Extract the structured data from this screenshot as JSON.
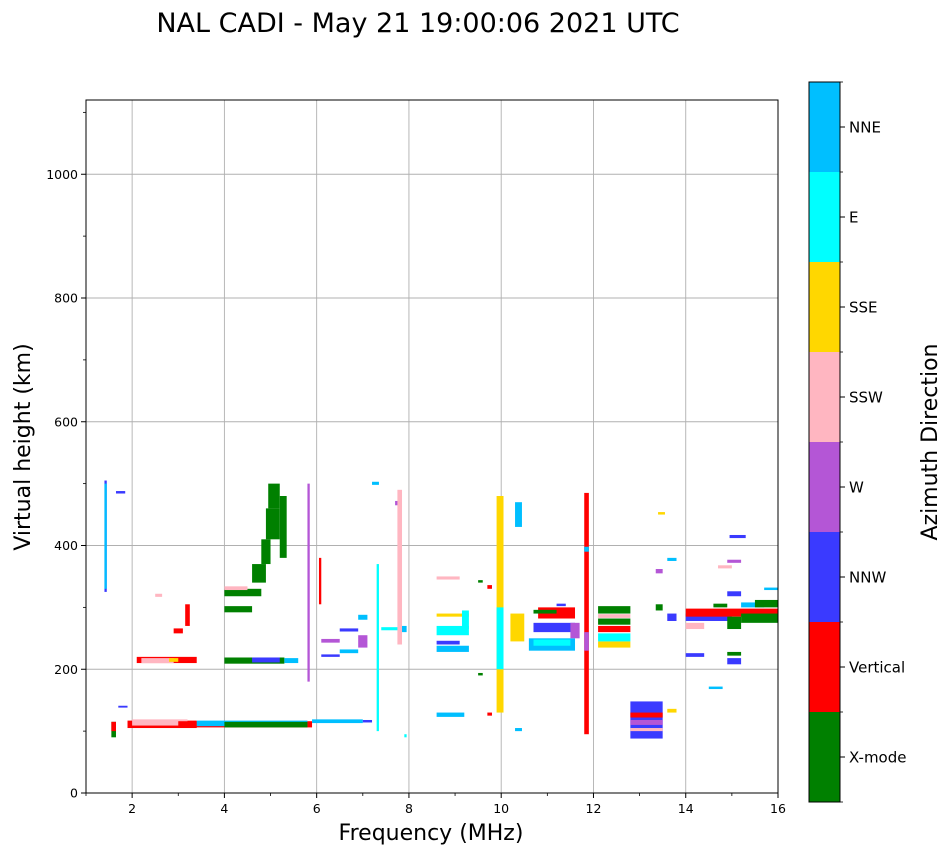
{
  "chart_data": {
    "type": "scatter",
    "title": "NAL CADI - May 21 19:00:06 2021 UTC",
    "xlabel": "Frequency (MHz)",
    "ylabel": "Virtual height (km)",
    "xlim": [
      1,
      16
    ],
    "ylim": [
      0,
      1120
    ],
    "xticks": [
      2,
      4,
      6,
      8,
      10,
      12,
      14,
      16
    ],
    "yticks": [
      0,
      200,
      400,
      600,
      800,
      1000
    ],
    "grid": true,
    "colorbar": {
      "label": "Azimuth Direction",
      "categories": [
        {
          "name": "X-mode",
          "color": "#008000"
        },
        {
          "name": "Vertical",
          "color": "#ff0000"
        },
        {
          "name": "NNW",
          "color": "#3a3aff"
        },
        {
          "name": "W",
          "color": "#b456d6"
        },
        {
          "name": "SSW",
          "color": "#ffb6c1"
        },
        {
          "name": "SSE",
          "color": "#ffd700"
        },
        {
          "name": "E",
          "color": "#00ffff"
        },
        {
          "name": "NNE",
          "color": "#00bfff"
        }
      ]
    },
    "segments": [
      {
        "x0": 1.4,
        "x1": 1.45,
        "y0": 325,
        "y1": 505,
        "c": "NNW"
      },
      {
        "x0": 1.4,
        "x1": 1.45,
        "y0": 330,
        "y1": 500,
        "c": "NNE"
      },
      {
        "x0": 1.65,
        "x1": 1.85,
        "y0": 484,
        "y1": 488,
        "c": "NNW"
      },
      {
        "x0": 1.55,
        "x1": 1.65,
        "y0": 90,
        "y1": 115,
        "c": "X-mode"
      },
      {
        "x0": 1.55,
        "x1": 1.65,
        "y0": 100,
        "y1": 115,
        "c": "Vertical"
      },
      {
        "x0": 1.7,
        "x1": 1.9,
        "y0": 138,
        "y1": 141,
        "c": "NNW"
      },
      {
        "x0": 1.9,
        "x1": 3.4,
        "y0": 105,
        "y1": 117,
        "c": "Vertical"
      },
      {
        "x0": 2.0,
        "x1": 3.2,
        "y0": 109,
        "y1": 119,
        "c": "SSW"
      },
      {
        "x0": 2.1,
        "x1": 3.4,
        "y0": 210,
        "y1": 220,
        "c": "Vertical"
      },
      {
        "x0": 2.2,
        "x1": 2.9,
        "y0": 210,
        "y1": 218,
        "c": "SSW"
      },
      {
        "x0": 2.8,
        "x1": 3.0,
        "y0": 212,
        "y1": 218,
        "c": "SSE"
      },
      {
        "x0": 2.5,
        "x1": 2.65,
        "y0": 317,
        "y1": 322,
        "c": "SSW"
      },
      {
        "x0": 2.9,
        "x1": 3.1,
        "y0": 258,
        "y1": 266,
        "c": "Vertical"
      },
      {
        "x0": 3.15,
        "x1": 3.25,
        "y0": 270,
        "y1": 305,
        "c": "Vertical"
      },
      {
        "x0": 3.0,
        "x1": 5.9,
        "y0": 106,
        "y1": 116,
        "c": "Vertical"
      },
      {
        "x0": 3.4,
        "x1": 5.8,
        "y0": 108,
        "y1": 117,
        "c": "NNE"
      },
      {
        "x0": 4.0,
        "x1": 5.8,
        "y0": 106,
        "y1": 115,
        "c": "X-mode"
      },
      {
        "x0": 4.0,
        "x1": 5.3,
        "y0": 209,
        "y1": 219,
        "c": "X-mode"
      },
      {
        "x0": 4.6,
        "x1": 5.2,
        "y0": 211,
        "y1": 219,
        "c": "NNW"
      },
      {
        "x0": 5.3,
        "x1": 5.6,
        "y0": 210,
        "y1": 218,
        "c": "NNE"
      },
      {
        "x0": 4.0,
        "x1": 4.6,
        "y0": 292,
        "y1": 302,
        "c": "X-mode"
      },
      {
        "x0": 4.0,
        "x1": 4.8,
        "y0": 318,
        "y1": 330,
        "c": "X-mode"
      },
      {
        "x0": 4.0,
        "x1": 4.5,
        "y0": 328,
        "y1": 334,
        "c": "SSW"
      },
      {
        "x0": 4.6,
        "x1": 4.9,
        "y0": 340,
        "y1": 370,
        "c": "X-mode"
      },
      {
        "x0": 4.8,
        "x1": 5.0,
        "y0": 370,
        "y1": 410,
        "c": "X-mode"
      },
      {
        "x0": 4.9,
        "x1": 5.2,
        "y0": 410,
        "y1": 460,
        "c": "X-mode"
      },
      {
        "x0": 4.95,
        "x1": 5.2,
        "y0": 460,
        "y1": 500,
        "c": "X-mode"
      },
      {
        "x0": 5.2,
        "x1": 5.35,
        "y0": 380,
        "y1": 480,
        "c": "X-mode"
      },
      {
        "x0": 5.8,
        "x1": 5.85,
        "y0": 180,
        "y1": 500,
        "c": "W"
      },
      {
        "x0": 6.05,
        "x1": 6.1,
        "y0": 305,
        "y1": 380,
        "c": "Vertical"
      },
      {
        "x0": 5.9,
        "x1": 7.0,
        "y0": 113,
        "y1": 119,
        "c": "NNE"
      },
      {
        "x0": 7.0,
        "x1": 7.2,
        "y0": 114,
        "y1": 118,
        "c": "NNW"
      },
      {
        "x0": 6.1,
        "x1": 6.5,
        "y0": 243,
        "y1": 249,
        "c": "W"
      },
      {
        "x0": 6.1,
        "x1": 6.5,
        "y0": 220,
        "y1": 224,
        "c": "NNW"
      },
      {
        "x0": 6.5,
        "x1": 6.9,
        "y0": 226,
        "y1": 232,
        "c": "NNE"
      },
      {
        "x0": 6.5,
        "x1": 6.9,
        "y0": 261,
        "y1": 266,
        "c": "NNW"
      },
      {
        "x0": 6.9,
        "x1": 7.1,
        "y0": 235,
        "y1": 255,
        "c": "W"
      },
      {
        "x0": 6.9,
        "x1": 7.1,
        "y0": 280,
        "y1": 288,
        "c": "NNE"
      },
      {
        "x0": 7.3,
        "x1": 7.35,
        "y0": 100,
        "y1": 370,
        "c": "E"
      },
      {
        "x0": 7.2,
        "x1": 7.35,
        "y0": 498,
        "y1": 503,
        "c": "NNE"
      },
      {
        "x0": 7.4,
        "x1": 7.8,
        "y0": 263,
        "y1": 268,
        "c": "E"
      },
      {
        "x0": 7.7,
        "x1": 7.8,
        "y0": 465,
        "y1": 472,
        "c": "W"
      },
      {
        "x0": 7.75,
        "x1": 7.85,
        "y0": 240,
        "y1": 490,
        "c": "SSW"
      },
      {
        "x0": 7.9,
        "x1": 7.95,
        "y0": 90,
        "y1": 95,
        "c": "E"
      },
      {
        "x0": 7.85,
        "x1": 7.95,
        "y0": 260,
        "y1": 270,
        "c": "NNE"
      },
      {
        "x0": 8.6,
        "x1": 9.1,
        "y0": 345,
        "y1": 350,
        "c": "SSW"
      },
      {
        "x0": 8.6,
        "x1": 9.3,
        "y0": 285,
        "y1": 290,
        "c": "SSE"
      },
      {
        "x0": 8.6,
        "x1": 9.3,
        "y0": 255,
        "y1": 270,
        "c": "E"
      },
      {
        "x0": 8.6,
        "x1": 9.1,
        "y0": 240,
        "y1": 246,
        "c": "NNW"
      },
      {
        "x0": 8.6,
        "x1": 9.3,
        "y0": 228,
        "y1": 238,
        "c": "NNE"
      },
      {
        "x0": 8.6,
        "x1": 9.2,
        "y0": 123,
        "y1": 130,
        "c": "NNE"
      },
      {
        "x0": 9.15,
        "x1": 9.3,
        "y0": 265,
        "y1": 295,
        "c": "E"
      },
      {
        "x0": 9.5,
        "x1": 9.6,
        "y0": 340,
        "y1": 344,
        "c": "X-mode"
      },
      {
        "x0": 9.5,
        "x1": 9.6,
        "y0": 190,
        "y1": 194,
        "c": "X-mode"
      },
      {
        "x0": 9.7,
        "x1": 9.8,
        "y0": 125,
        "y1": 130,
        "c": "Vertical"
      },
      {
        "x0": 9.7,
        "x1": 9.8,
        "y0": 330,
        "y1": 336,
        "c": "Vertical"
      },
      {
        "x0": 9.9,
        "x1": 10.05,
        "y0": 130,
        "y1": 480,
        "c": "SSE"
      },
      {
        "x0": 9.9,
        "x1": 10.05,
        "y0": 200,
        "y1": 300,
        "c": "E"
      },
      {
        "x0": 10.2,
        "x1": 10.5,
        "y0": 245,
        "y1": 290,
        "c": "SSE"
      },
      {
        "x0": 10.3,
        "x1": 10.45,
        "y0": 100,
        "y1": 105,
        "c": "NNE"
      },
      {
        "x0": 10.3,
        "x1": 10.45,
        "y0": 430,
        "y1": 470,
        "c": "NNE"
      },
      {
        "x0": 10.6,
        "x1": 11.6,
        "y0": 230,
        "y1": 250,
        "c": "NNE"
      },
      {
        "x0": 10.7,
        "x1": 11.5,
        "y0": 238,
        "y1": 248,
        "c": "E"
      },
      {
        "x0": 10.7,
        "x1": 11.6,
        "y0": 260,
        "y1": 275,
        "c": "NNW"
      },
      {
        "x0": 10.8,
        "x1": 11.6,
        "y0": 282,
        "y1": 300,
        "c": "Vertical"
      },
      {
        "x0": 10.7,
        "x1": 11.2,
        "y0": 290,
        "y1": 296,
        "c": "X-mode"
      },
      {
        "x0": 11.2,
        "x1": 11.4,
        "y0": 302,
        "y1": 306,
        "c": "NNW"
      },
      {
        "x0": 11.5,
        "x1": 11.7,
        "y0": 250,
        "y1": 275,
        "c": "W"
      },
      {
        "x0": 11.8,
        "x1": 11.9,
        "y0": 95,
        "y1": 485,
        "c": "Vertical"
      },
      {
        "x0": 11.8,
        "x1": 11.9,
        "y0": 230,
        "y1": 260,
        "c": "W"
      },
      {
        "x0": 11.8,
        "x1": 11.9,
        "y0": 390,
        "y1": 398,
        "c": "NNE"
      },
      {
        "x0": 12.1,
        "x1": 12.8,
        "y0": 235,
        "y1": 245,
        "c": "SSE"
      },
      {
        "x0": 12.1,
        "x1": 12.8,
        "y0": 245,
        "y1": 258,
        "c": "E"
      },
      {
        "x0": 12.1,
        "x1": 12.8,
        "y0": 260,
        "y1": 270,
        "c": "Vertical"
      },
      {
        "x0": 12.1,
        "x1": 12.8,
        "y0": 272,
        "y1": 282,
        "c": "X-mode"
      },
      {
        "x0": 12.1,
        "x1": 12.8,
        "y0": 290,
        "y1": 302,
        "c": "X-mode"
      },
      {
        "x0": 12.1,
        "x1": 12.8,
        "y0": 283,
        "y1": 289,
        "c": "SSW"
      },
      {
        "x0": 12.8,
        "x1": 13.5,
        "y0": 88,
        "y1": 148,
        "c": "NNW"
      },
      {
        "x0": 12.8,
        "x1": 13.5,
        "y0": 110,
        "y1": 118,
        "c": "W"
      },
      {
        "x0": 12.8,
        "x1": 13.5,
        "y0": 122,
        "y1": 130,
        "c": "Vertical"
      },
      {
        "x0": 12.8,
        "x1": 13.5,
        "y0": 100,
        "y1": 105,
        "c": "SSW"
      },
      {
        "x0": 13.6,
        "x1": 13.8,
        "y0": 130,
        "y1": 136,
        "c": "SSE"
      },
      {
        "x0": 13.35,
        "x1": 13.5,
        "y0": 295,
        "y1": 305,
        "c": "X-mode"
      },
      {
        "x0": 13.35,
        "x1": 13.5,
        "y0": 355,
        "y1": 362,
        "c": "W"
      },
      {
        "x0": 13.6,
        "x1": 13.8,
        "y0": 375,
        "y1": 380,
        "c": "NNE"
      },
      {
        "x0": 13.6,
        "x1": 13.8,
        "y0": 278,
        "y1": 290,
        "c": "NNW"
      },
      {
        "x0": 13.4,
        "x1": 13.55,
        "y0": 450,
        "y1": 454,
        "c": "SSE"
      },
      {
        "x0": 14.0,
        "x1": 14.4,
        "y0": 220,
        "y1": 226,
        "c": "NNW"
      },
      {
        "x0": 14.0,
        "x1": 14.4,
        "y0": 265,
        "y1": 275,
        "c": "SSW"
      },
      {
        "x0": 14.0,
        "x1": 15.0,
        "y0": 278,
        "y1": 290,
        "c": "NNW"
      },
      {
        "x0": 14.0,
        "x1": 16.0,
        "y0": 285,
        "y1": 298,
        "c": "Vertical"
      },
      {
        "x0": 14.5,
        "x1": 14.8,
        "y0": 168,
        "y1": 172,
        "c": "NNE"
      },
      {
        "x0": 14.6,
        "x1": 14.9,
        "y0": 300,
        "y1": 306,
        "c": "X-mode"
      },
      {
        "x0": 14.7,
        "x1": 15.0,
        "y0": 363,
        "y1": 368,
        "c": "SSW"
      },
      {
        "x0": 14.9,
        "x1": 15.2,
        "y0": 208,
        "y1": 218,
        "c": "NNW"
      },
      {
        "x0": 14.9,
        "x1": 15.2,
        "y0": 222,
        "y1": 228,
        "c": "X-mode"
      },
      {
        "x0": 14.9,
        "x1": 15.2,
        "y0": 265,
        "y1": 285,
        "c": "X-mode"
      },
      {
        "x0": 14.9,
        "x1": 15.2,
        "y0": 318,
        "y1": 326,
        "c": "NNW"
      },
      {
        "x0": 14.9,
        "x1": 15.2,
        "y0": 372,
        "y1": 377,
        "c": "W"
      },
      {
        "x0": 14.95,
        "x1": 15.3,
        "y0": 412,
        "y1": 417,
        "c": "NNW"
      },
      {
        "x0": 15.2,
        "x1": 16.0,
        "y0": 275,
        "y1": 290,
        "c": "X-mode"
      },
      {
        "x0": 15.2,
        "x1": 15.7,
        "y0": 300,
        "y1": 308,
        "c": "NNE"
      },
      {
        "x0": 15.5,
        "x1": 16.0,
        "y0": 300,
        "y1": 312,
        "c": "X-mode"
      },
      {
        "x0": 15.7,
        "x1": 16.0,
        "y0": 328,
        "y1": 332,
        "c": "NNE"
      }
    ]
  }
}
